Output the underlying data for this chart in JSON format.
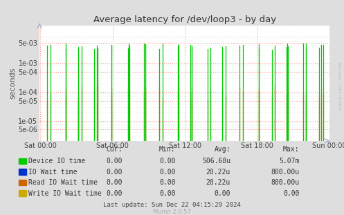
{
  "title": "Average latency for /dev/loop3 - by day",
  "ylabel": "seconds",
  "background_color": "#dedede",
  "plot_bg_color": "#ffffff",
  "grid_color_major": "#ff9999",
  "grid_color_minor": "#e8e8e8",
  "yticks": [
    5e-06,
    1e-05,
    5e-05,
    0.0001,
    0.0005,
    0.001,
    0.005
  ],
  "ytick_labels": [
    "5e-06",
    "1e-05",
    "5e-05",
    "1e-04",
    "5e-04",
    "1e-03",
    "5e-03"
  ],
  "ymin": 2e-06,
  "ymax": 0.02,
  "xtick_labels": [
    "Sat 00:00",
    "Sat 06:00",
    "Sat 12:00",
    "Sat 18:00",
    "Sun 00:00"
  ],
  "legend": [
    {
      "label": "Device IO time",
      "color": "#00cc00"
    },
    {
      "label": "IO Wait time",
      "color": "#0033cc"
    },
    {
      "label": "Read IO Wait time",
      "color": "#cc6600"
    },
    {
      "label": "Write IO Wait time",
      "color": "#ccaa00"
    }
  ],
  "table_headers": [
    "Cur:",
    "Min:",
    "Avg:",
    "Max:"
  ],
  "table_rows": [
    [
      "0.00",
      "0.00",
      "506.68u",
      "5.07m"
    ],
    [
      "0.00",
      "0.00",
      "20.22u",
      "800.00u"
    ],
    [
      "0.00",
      "0.00",
      "20.22u",
      "800.00u"
    ],
    [
      "0.00",
      "0.00",
      "0.00",
      "0.00"
    ]
  ],
  "footer": "Last update: Sun Dec 22 04:15:29 2024",
  "rrdtool_label": "RRDTOOL / TOBI OETIKER",
  "munin_label": "Munin 2.0.57",
  "spike_color_green": "#00cc00",
  "spike_color_orange": "#cc6600",
  "arrow_color": "#aaaacc"
}
